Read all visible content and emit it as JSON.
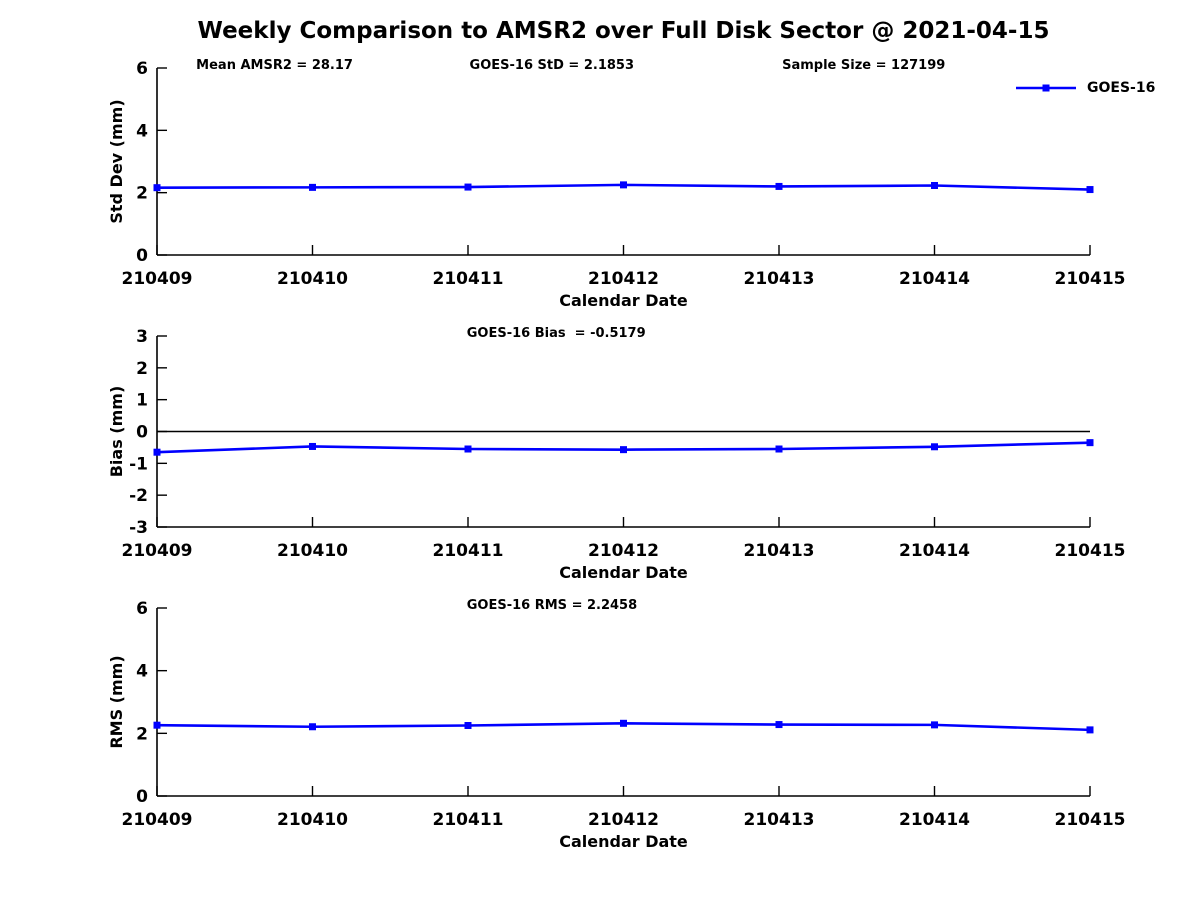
{
  "header": {
    "title": "Weekly Comparison to AMSR2 over Full Disk Sector @ 2021-04-15"
  },
  "legend": {
    "label": "GOES-16",
    "line_color": "#0000ff",
    "marker": "square"
  },
  "colors": {
    "series_blue": "#0000ff",
    "axis_black": "#000000",
    "background": "#ffffff"
  },
  "chart_data": [
    {
      "type": "line",
      "xlabel": "Calendar Date",
      "ylabel": "Std Dev (mm)",
      "categories": [
        "210409",
        "210410",
        "210411",
        "210412",
        "210413",
        "210414",
        "210415"
      ],
      "yticks": [
        0,
        2,
        4,
        6
      ],
      "ylim": [
        0,
        6
      ],
      "grid": false,
      "zero_line": false,
      "annotations": [
        {
          "text": "Mean AMSR2 = 28.17",
          "xfrac": 0.042
        },
        {
          "text": "GOES-16 StD = 2.1853",
          "xfrac": 0.335
        },
        {
          "text": "Sample Size = 127199",
          "xfrac": 0.67
        }
      ],
      "series": [
        {
          "name": "GOES-16",
          "color": "#0000ff",
          "marker": "square",
          "values": [
            2.16,
            2.17,
            2.18,
            2.25,
            2.2,
            2.23,
            2.1
          ]
        }
      ]
    },
    {
      "type": "line",
      "xlabel": "Calendar Date",
      "ylabel": "Bias (mm)",
      "categories": [
        "210409",
        "210410",
        "210411",
        "210412",
        "210413",
        "210414",
        "210415"
      ],
      "yticks": [
        -3,
        -2,
        -1,
        0,
        1,
        2,
        3
      ],
      "ylim": [
        -3,
        3
      ],
      "grid": false,
      "zero_line": true,
      "annotations": [
        {
          "text": "GOES-16 Bias  = -0.5179",
          "xfrac": 0.332
        }
      ],
      "series": [
        {
          "name": "GOES-16",
          "color": "#0000ff",
          "marker": "square",
          "values": [
            -0.65,
            -0.47,
            -0.55,
            -0.57,
            -0.55,
            -0.48,
            -0.35
          ]
        }
      ]
    },
    {
      "type": "line",
      "xlabel": "Calendar Date",
      "ylabel": "RMS (mm)",
      "categories": [
        "210409",
        "210410",
        "210411",
        "210412",
        "210413",
        "210414",
        "210415"
      ],
      "yticks": [
        0,
        2,
        4,
        6
      ],
      "ylim": [
        0,
        6
      ],
      "grid": false,
      "zero_line": false,
      "annotations": [
        {
          "text": "GOES-16 RMS = 2.2458",
          "xfrac": 0.332
        }
      ],
      "series": [
        {
          "name": "GOES-16",
          "color": "#0000ff",
          "marker": "square",
          "values": [
            2.26,
            2.21,
            2.25,
            2.32,
            2.28,
            2.27,
            2.11
          ]
        }
      ]
    }
  ]
}
